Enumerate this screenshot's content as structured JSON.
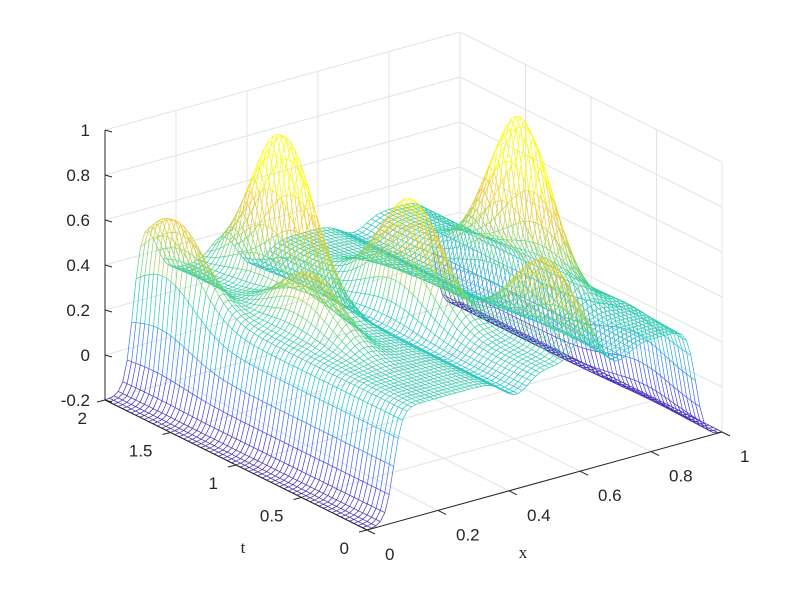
{
  "chart_data": {
    "type": "surface-mesh",
    "title": "",
    "xlabel": "x",
    "ylabel": "t",
    "zlabel": "",
    "xlim": [
      0,
      1
    ],
    "tlim": [
      0,
      2
    ],
    "zlim": [
      -0.2,
      1
    ],
    "xticks": [
      "0",
      "0.2",
      "0.4",
      "0.6",
      "0.8",
      "1"
    ],
    "xtick_values": [
      0,
      0.2,
      0.4,
      0.6,
      0.8,
      1
    ],
    "tticks": [
      "0",
      "0.5",
      "1",
      "1.5",
      "2"
    ],
    "ttick_values": [
      0,
      0.5,
      1,
      1.5,
      2
    ],
    "zticks": [
      "-0.2",
      "0",
      "0.2",
      "0.4",
      "0.6",
      "0.8",
      "1"
    ],
    "ztick_values": [
      -0.2,
      0,
      0.2,
      0.4,
      0.6,
      0.8,
      1
    ],
    "grid": true,
    "colormap": [
      "#3e26a8",
      "#4745f0",
      "#2f8ff5",
      "#1fc1d6",
      "#3ed19a",
      "#b9d34a",
      "#f5c838",
      "#f9fb0e"
    ],
    "baseline_z": -0.2,
    "plateau_z": 0.3,
    "peaks": [
      {
        "x": 0.11,
        "t": 1.79,
        "z": 0.65
      },
      {
        "x": 0.33,
        "t": 1.54,
        "z": 0.98
      },
      {
        "x": 0.22,
        "t": 1.02,
        "z": 0.55
      },
      {
        "x": 0.51,
        "t": 1.04,
        "z": 0.75
      },
      {
        "x": 0.8,
        "t": 1.0,
        "z": 1.0
      },
      {
        "x": 0.62,
        "t": 0.31,
        "z": 0.65
      },
      {
        "x": 0.97,
        "t": 0.46,
        "z": 0.8
      }
    ]
  }
}
